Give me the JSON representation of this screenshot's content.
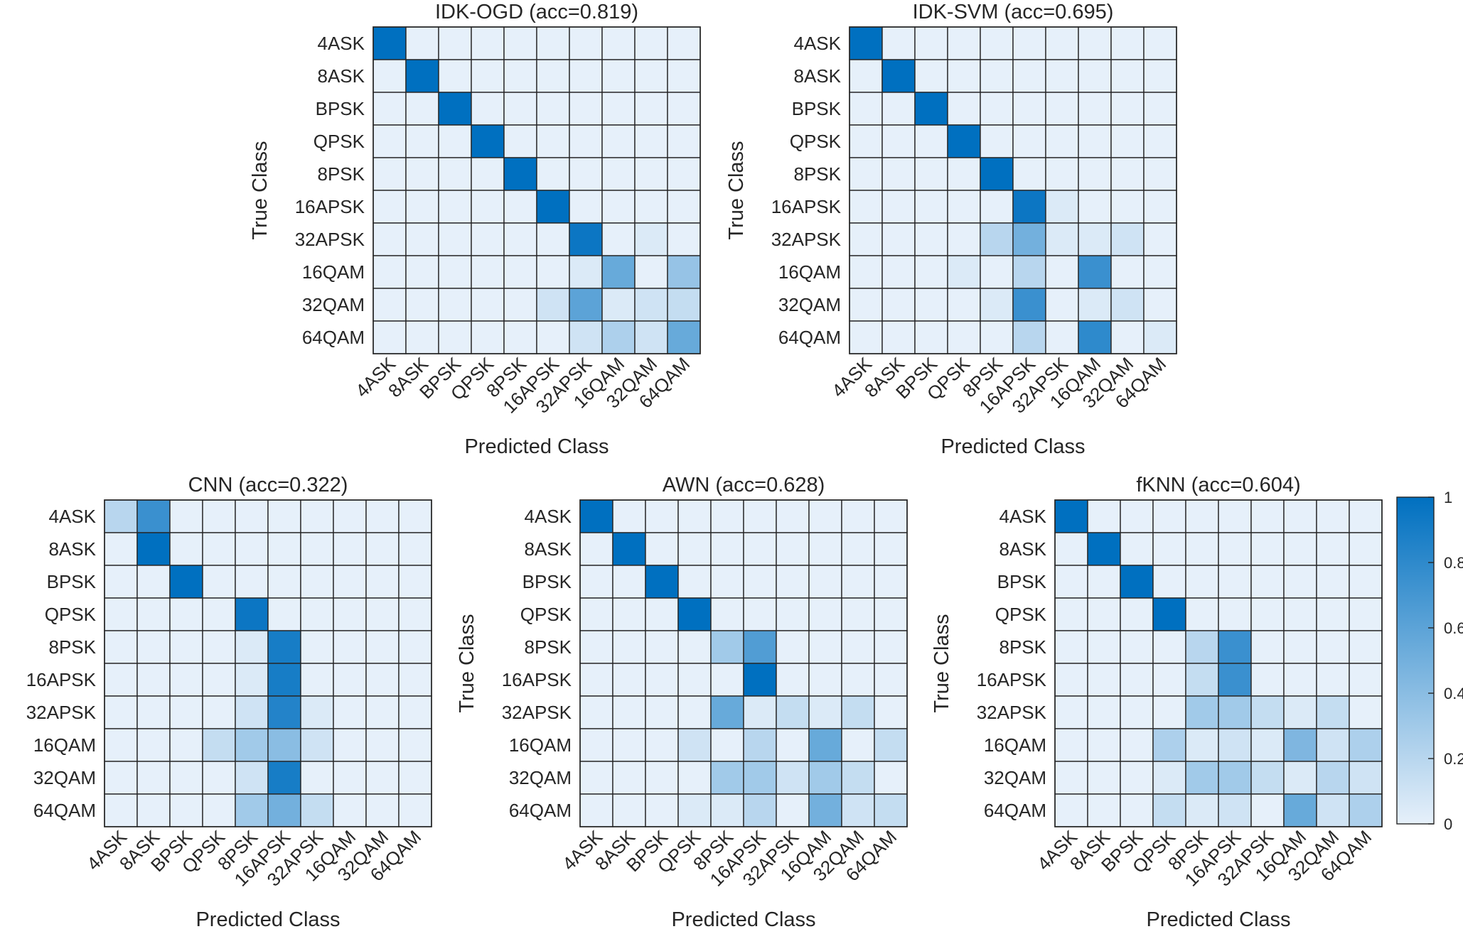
{
  "chart_data": [
    {
      "type": "heatmap",
      "title": "IDK-OGD (acc=0.819)",
      "xlabel": "Predicted Class",
      "ylabel": "True Class",
      "categories": [
        "4ASK",
        "8ASK",
        "BPSK",
        "QPSK",
        "8PSK",
        "16APSK",
        "32APSK",
        "16QAM",
        "32QAM",
        "64QAM"
      ],
      "values": [
        [
          1,
          0,
          0,
          0,
          0,
          0,
          0,
          0,
          0,
          0
        ],
        [
          0,
          1,
          0,
          0,
          0,
          0,
          0,
          0,
          0,
          0
        ],
        [
          0,
          0,
          1,
          0,
          0,
          0,
          0,
          0,
          0,
          0
        ],
        [
          0,
          0,
          0,
          1,
          0,
          0,
          0,
          0,
          0,
          0
        ],
        [
          0,
          0,
          0,
          0,
          1,
          0,
          0,
          0,
          0,
          0
        ],
        [
          0,
          0,
          0,
          0,
          0,
          1,
          0,
          0,
          0,
          0
        ],
        [
          0,
          0,
          0,
          0,
          0,
          0,
          0.95,
          0,
          0.05,
          0
        ],
        [
          0,
          0,
          0,
          0,
          0,
          0,
          0.05,
          0.55,
          0,
          0.35
        ],
        [
          0,
          0,
          0,
          0,
          0,
          0.1,
          0.6,
          0.05,
          0.1,
          0.15
        ],
        [
          0,
          0,
          0,
          0,
          0,
          0,
          0.1,
          0.25,
          0.1,
          0.55
        ]
      ],
      "clim": [
        0,
        1
      ]
    },
    {
      "type": "heatmap",
      "title": "IDK-SVM (acc=0.695)",
      "xlabel": "Predicted Class",
      "ylabel": "True Class",
      "categories": [
        "4ASK",
        "8ASK",
        "BPSK",
        "QPSK",
        "8PSK",
        "16APSK",
        "32APSK",
        "16QAM",
        "32QAM",
        "64QAM"
      ],
      "values": [
        [
          1,
          0,
          0,
          0,
          0,
          0,
          0,
          0,
          0,
          0
        ],
        [
          0,
          1,
          0,
          0,
          0,
          0,
          0,
          0,
          0,
          0
        ],
        [
          0,
          0,
          1,
          0,
          0,
          0,
          0,
          0,
          0,
          0
        ],
        [
          0,
          0,
          0,
          1,
          0,
          0,
          0,
          0,
          0,
          0
        ],
        [
          0,
          0,
          0,
          0,
          1,
          0,
          0,
          0,
          0,
          0
        ],
        [
          0,
          0,
          0,
          0,
          0,
          0.95,
          0.05,
          0,
          0,
          0
        ],
        [
          0,
          0,
          0,
          0,
          0.2,
          0.5,
          0.05,
          0.05,
          0.1,
          0
        ],
        [
          0,
          0,
          0,
          0.05,
          0,
          0.2,
          0,
          0.75,
          0,
          0
        ],
        [
          0,
          0,
          0,
          0,
          0.05,
          0.75,
          0,
          0.05,
          0.1,
          0
        ],
        [
          0,
          0,
          0,
          0,
          0,
          0.2,
          0,
          0.8,
          0,
          0.05
        ]
      ],
      "clim": [
        0,
        1
      ]
    },
    {
      "type": "heatmap",
      "title": "CNN (acc=0.322)",
      "xlabel": "Predicted Class",
      "ylabel": "True Class",
      "categories": [
        "4ASK",
        "8ASK",
        "BPSK",
        "QPSK",
        "8PSK",
        "16APSK",
        "32APSK",
        "16QAM",
        "32QAM",
        "64QAM"
      ],
      "values": [
        [
          0.2,
          0.75,
          0,
          0,
          0,
          0,
          0,
          0,
          0,
          0
        ],
        [
          0,
          1,
          0,
          0,
          0,
          0,
          0,
          0,
          0,
          0
        ],
        [
          0,
          0,
          1,
          0,
          0,
          0,
          0,
          0,
          0,
          0
        ],
        [
          0,
          0,
          0,
          0,
          0.95,
          0,
          0,
          0,
          0,
          0
        ],
        [
          0,
          0,
          0,
          0,
          0.05,
          0.9,
          0,
          0,
          0,
          0
        ],
        [
          0,
          0,
          0,
          0,
          0.05,
          0.9,
          0,
          0,
          0,
          0
        ],
        [
          0,
          0,
          0,
          0,
          0.1,
          0.85,
          0.05,
          0,
          0,
          0
        ],
        [
          0,
          0,
          0,
          0.15,
          0.3,
          0.4,
          0.1,
          0,
          0,
          0
        ],
        [
          0,
          0,
          0,
          0,
          0.1,
          0.9,
          0,
          0,
          0,
          0
        ],
        [
          0,
          0,
          0,
          0,
          0.3,
          0.5,
          0.15,
          0,
          0,
          0
        ]
      ],
      "clim": [
        0,
        1
      ]
    },
    {
      "type": "heatmap",
      "title": "AWN (acc=0.628)",
      "xlabel": "Predicted Class",
      "ylabel": "True Class",
      "categories": [
        "4ASK",
        "8ASK",
        "BPSK",
        "QPSK",
        "8PSK",
        "16APSK",
        "32APSK",
        "16QAM",
        "32QAM",
        "64QAM"
      ],
      "values": [
        [
          1,
          0,
          0,
          0,
          0,
          0,
          0,
          0,
          0,
          0
        ],
        [
          0,
          1,
          0,
          0,
          0,
          0,
          0,
          0,
          0,
          0
        ],
        [
          0,
          0,
          1,
          0,
          0,
          0,
          0,
          0,
          0,
          0
        ],
        [
          0,
          0,
          0,
          1,
          0,
          0,
          0,
          0,
          0,
          0
        ],
        [
          0,
          0,
          0,
          0,
          0.3,
          0.65,
          0,
          0,
          0,
          0
        ],
        [
          0,
          0,
          0,
          0,
          0,
          1,
          0,
          0,
          0,
          0
        ],
        [
          0,
          0,
          0,
          0,
          0.55,
          0.05,
          0.15,
          0.05,
          0.15,
          0
        ],
        [
          0,
          0,
          0,
          0.1,
          0,
          0.2,
          0,
          0.55,
          0,
          0.15
        ],
        [
          0,
          0,
          0,
          0,
          0.3,
          0.3,
          0.1,
          0.3,
          0.15,
          0
        ],
        [
          0,
          0,
          0,
          0.05,
          0.05,
          0.2,
          0,
          0.5,
          0.1,
          0.15
        ]
      ],
      "clim": [
        0,
        1
      ]
    },
    {
      "type": "heatmap",
      "title": "fKNN (acc=0.604)",
      "xlabel": "Predicted Class",
      "ylabel": "True Class",
      "categories": [
        "4ASK",
        "8ASK",
        "BPSK",
        "QPSK",
        "8PSK",
        "16APSK",
        "32APSK",
        "16QAM",
        "32QAM",
        "64QAM"
      ],
      "values": [
        [
          1,
          0,
          0,
          0,
          0,
          0,
          0,
          0,
          0,
          0
        ],
        [
          0,
          1,
          0,
          0,
          0,
          0,
          0,
          0,
          0,
          0
        ],
        [
          0,
          0,
          1,
          0,
          0,
          0,
          0,
          0,
          0,
          0
        ],
        [
          0,
          0,
          0,
          1,
          0,
          0,
          0,
          0,
          0,
          0
        ],
        [
          0,
          0,
          0,
          0,
          0.2,
          0.75,
          0,
          0,
          0,
          0
        ],
        [
          0,
          0,
          0,
          0,
          0.15,
          0.75,
          0,
          0,
          0,
          0
        ],
        [
          0,
          0,
          0,
          0,
          0.3,
          0.3,
          0.15,
          0.05,
          0.15,
          0
        ],
        [
          0,
          0,
          0,
          0.25,
          0.05,
          0.1,
          0.05,
          0.45,
          0.1,
          0.25
        ],
        [
          0,
          0,
          0,
          0.05,
          0.3,
          0.3,
          0.15,
          0.05,
          0.2,
          0.1
        ],
        [
          0,
          0,
          0,
          0.15,
          0.05,
          0.1,
          0,
          0.55,
          0.1,
          0.25
        ]
      ],
      "clim": [
        0,
        1
      ]
    }
  ],
  "colorbar": {
    "ticks": [
      "0",
      "0.2",
      "0.4",
      "0.6",
      "0.8",
      "1"
    ],
    "low_color": "#e6f0fa",
    "high_color": "#0070c0"
  },
  "colors": {
    "grid": "#262626",
    "text": "#262626"
  }
}
